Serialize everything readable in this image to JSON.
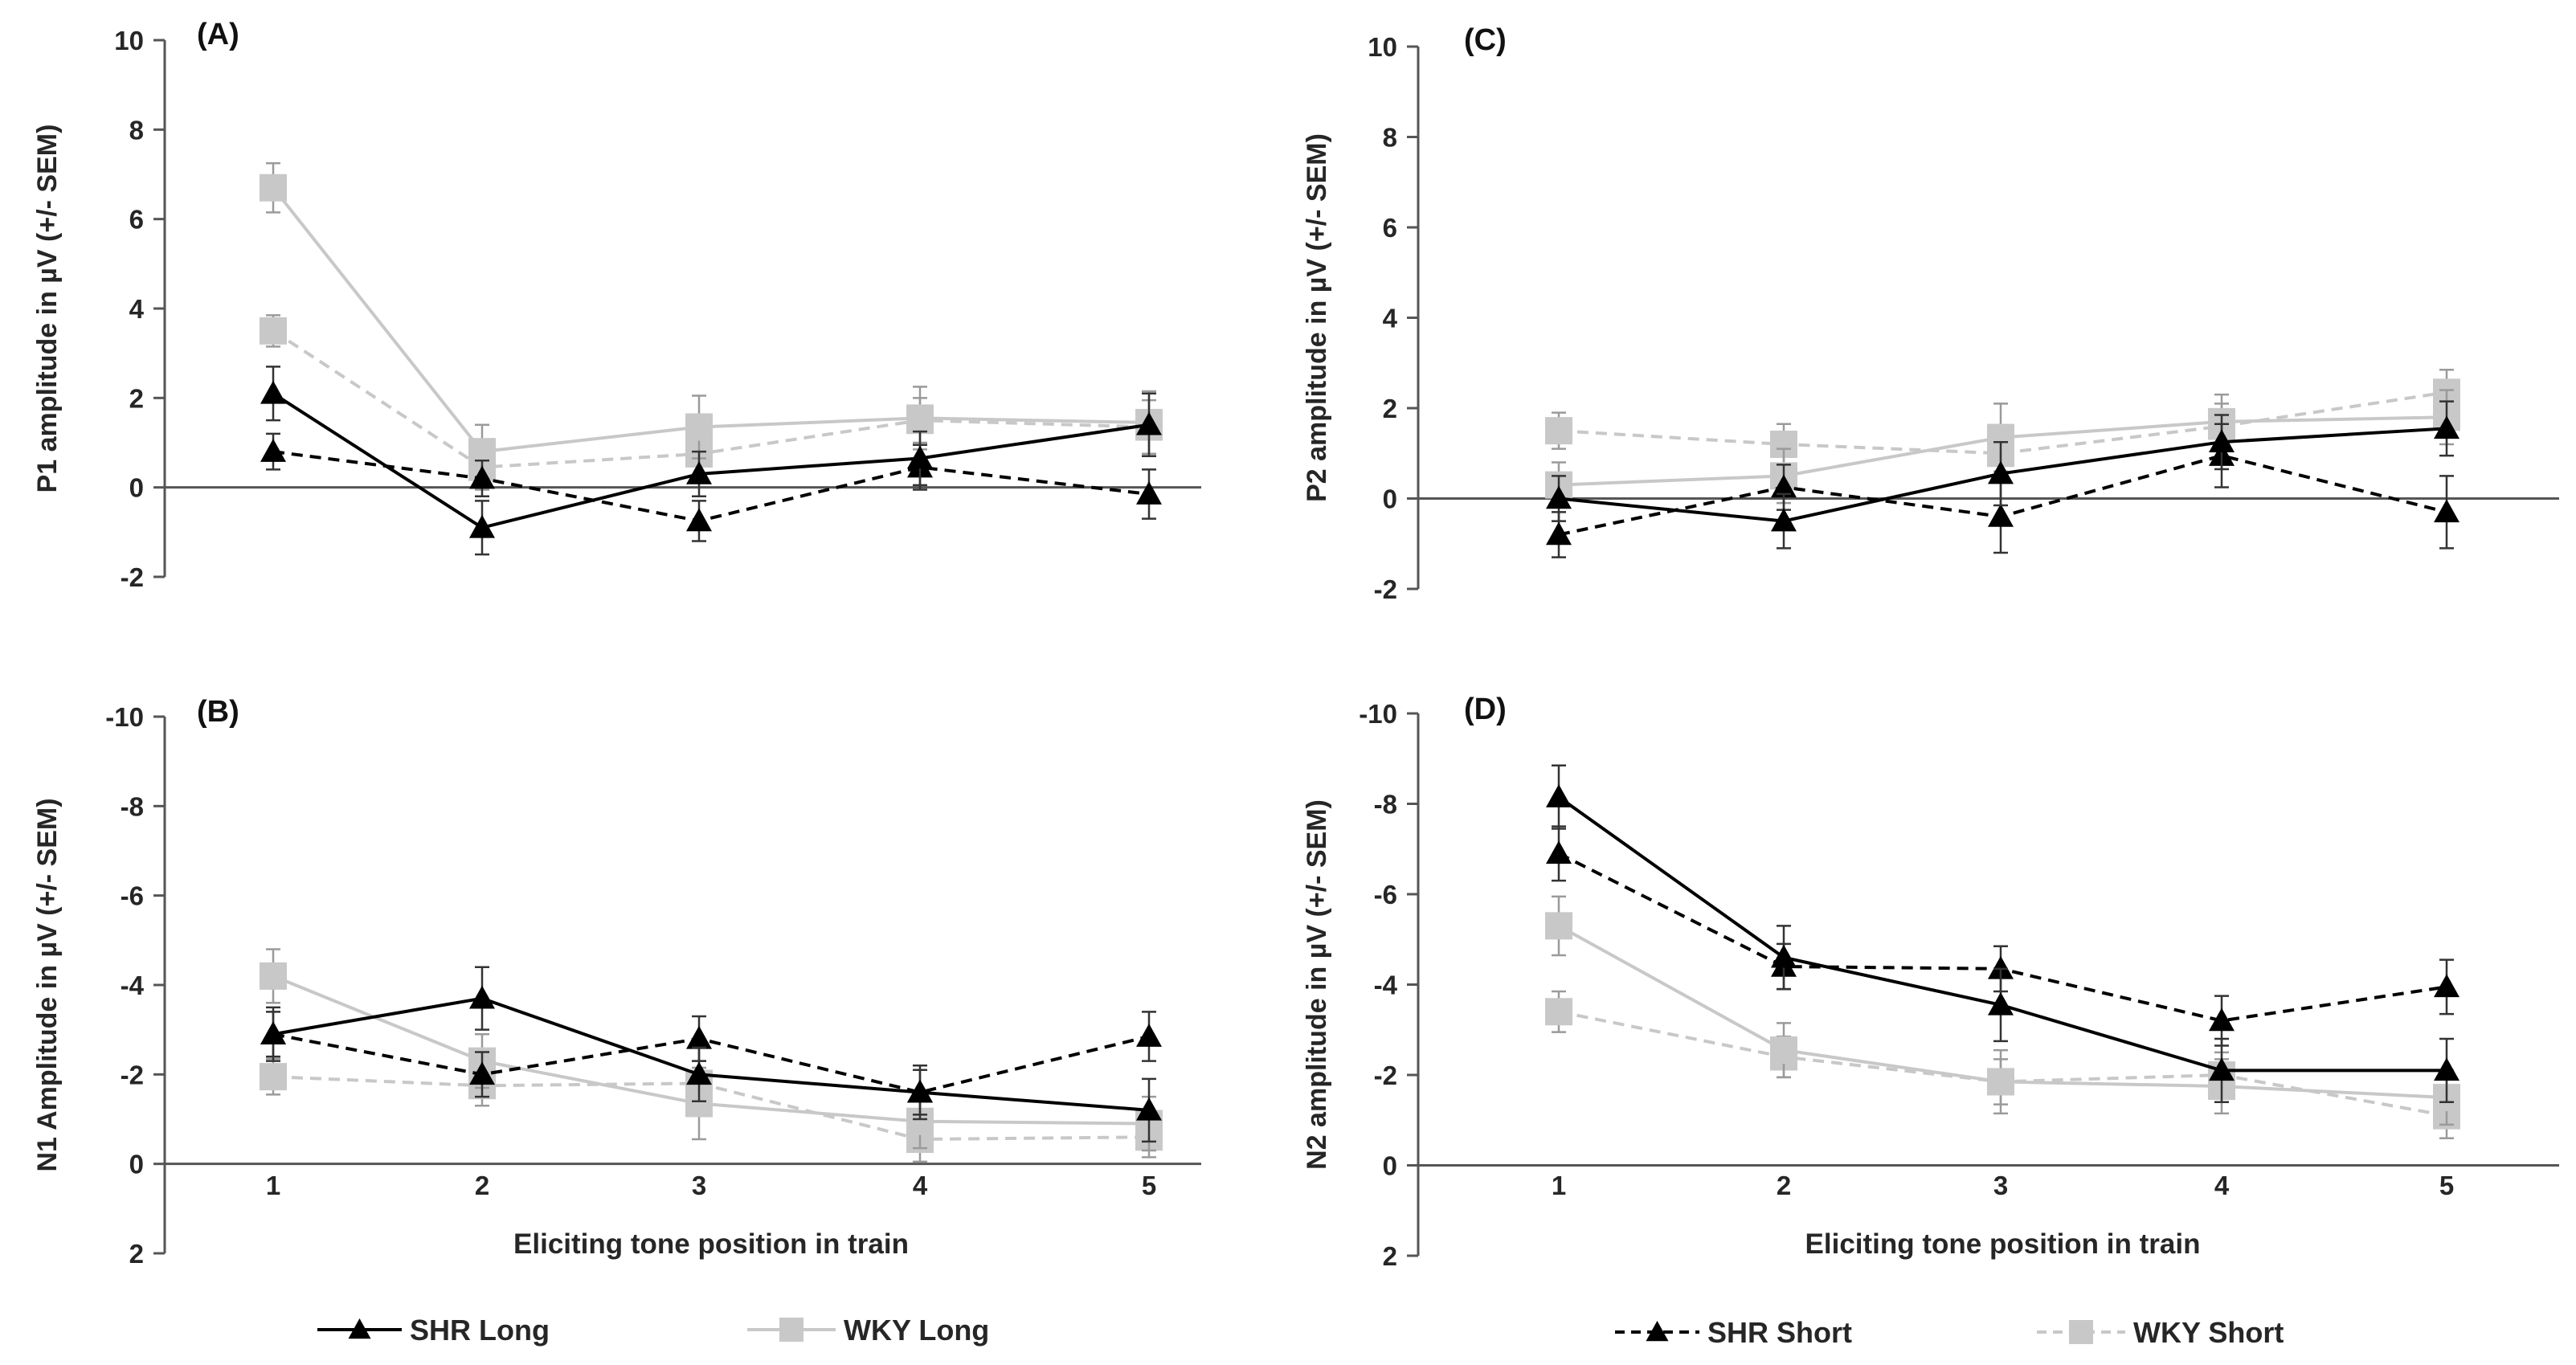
{
  "chart_data": [
    {
      "type": "line",
      "panel": "(A)",
      "ylabel": "P1 amplitude in µV (+/- SEM)",
      "xlabel": "",
      "ylim": [
        -2,
        10
      ],
      "yticks": [
        "-2",
        "0",
        "2",
        "4",
        "6",
        "8",
        "10"
      ],
      "inverted": false,
      "x": [
        1,
        2,
        3,
        4,
        5
      ],
      "xtick_labels": [],
      "series": [
        {
          "name": "SHR Long",
          "values": [
            2.1,
            -0.9,
            0.3,
            0.65,
            1.4
          ],
          "err": [
            0.6,
            0.6,
            0.5,
            0.6,
            0.7
          ]
        },
        {
          "name": "WKY Long",
          "values": [
            6.7,
            0.8,
            1.35,
            1.55,
            1.45
          ],
          "err": [
            0.55,
            0.6,
            0.7,
            0.7,
            0.7
          ]
        },
        {
          "name": "SHR Short",
          "values": [
            0.8,
            0.2,
            -0.75,
            0.45,
            -0.15
          ],
          "err": [
            0.4,
            0.4,
            0.45,
            0.5,
            0.55
          ]
        },
        {
          "name": "WKY Short",
          "values": [
            3.5,
            0.45,
            0.75,
            1.5,
            1.35
          ],
          "err": [
            0.35,
            0.5,
            0.5,
            0.5,
            0.6
          ]
        }
      ]
    },
    {
      "type": "line",
      "panel": "(B)",
      "ylabel": "N1  Amplitude in µV (+/- SEM)",
      "xlabel": "Eliciting tone position in train",
      "ylim": [
        2,
        -10
      ],
      "yticks": [
        "2",
        "0",
        "-2",
        "-4",
        "-6",
        "-8",
        "-10"
      ],
      "inverted": true,
      "x": [
        1,
        2,
        3,
        4,
        5
      ],
      "xtick_labels": [
        "1",
        "2",
        "3",
        "4",
        "5"
      ],
      "series": [
        {
          "name": "SHR Long",
          "values": [
            -2.9,
            -3.7,
            -2.0,
            -1.6,
            -1.2
          ],
          "err": [
            0.6,
            0.7,
            0.6,
            0.6,
            0.7
          ]
        },
        {
          "name": "WKY Long",
          "values": [
            -4.2,
            -2.3,
            -1.35,
            -0.95,
            -0.9
          ],
          "err": [
            0.6,
            0.6,
            0.8,
            0.6,
            0.6
          ]
        },
        {
          "name": "SHR Short",
          "values": [
            -2.9,
            -2.0,
            -2.8,
            -1.6,
            -2.85
          ],
          "err": [
            0.5,
            0.5,
            0.5,
            0.5,
            0.55
          ]
        },
        {
          "name": "WKY Short",
          "values": [
            -1.95,
            -1.75,
            -1.8,
            -0.55,
            -0.6
          ],
          "err": [
            0.4,
            0.45,
            0.5,
            0.5,
            0.45
          ]
        }
      ]
    },
    {
      "type": "line",
      "panel": "(C)",
      "ylabel": "P2 amplitude in µV (+/- SEM)",
      "xlabel": "",
      "ylim": [
        -2,
        10
      ],
      "yticks": [
        "-2",
        "0",
        "2",
        "4",
        "6",
        "8",
        "10"
      ],
      "inverted": false,
      "x": [
        1,
        2,
        3,
        4,
        5
      ],
      "xtick_labels": [],
      "series": [
        {
          "name": "SHR Long",
          "values": [
            0.0,
            -0.5,
            0.55,
            1.25,
            1.55
          ],
          "err": [
            0.5,
            0.6,
            0.7,
            0.6,
            0.6
          ]
        },
        {
          "name": "WKY Long",
          "values": [
            0.3,
            0.5,
            1.35,
            1.7,
            1.8
          ],
          "err": [
            0.5,
            0.6,
            0.75,
            0.6,
            0.6
          ]
        },
        {
          "name": "SHR Short",
          "values": [
            -0.8,
            0.25,
            -0.4,
            0.95,
            -0.3
          ],
          "err": [
            0.5,
            0.5,
            0.8,
            0.7,
            0.8
          ]
        },
        {
          "name": "WKY Short",
          "values": [
            1.5,
            1.2,
            1.0,
            1.6,
            2.35
          ],
          "err": [
            0.4,
            0.45,
            0.5,
            0.5,
            0.5
          ]
        }
      ]
    },
    {
      "type": "line",
      "panel": "(D)",
      "ylabel": "N2 amplitude in µV (+/- SEM)",
      "xlabel": "Eliciting tone position in train",
      "ylim": [
        2,
        -10
      ],
      "yticks": [
        "2",
        "0",
        "-2",
        "-4",
        "-6",
        "-8",
        "-10"
      ],
      "inverted": true,
      "x": [
        1,
        2,
        3,
        4,
        5
      ],
      "xtick_labels": [
        "1",
        "2",
        "3",
        "4",
        "5"
      ],
      "series": [
        {
          "name": "SHR Long",
          "values": [
            -8.15,
            -4.6,
            -3.55,
            -2.1,
            -2.1
          ],
          "err": [
            0.7,
            0.7,
            0.8,
            0.7,
            0.7
          ]
        },
        {
          "name": "WKY Long",
          "values": [
            -5.3,
            -2.55,
            -1.85,
            -1.75,
            -1.5
          ],
          "err": [
            0.65,
            0.6,
            0.7,
            0.6,
            0.6
          ]
        },
        {
          "name": "SHR Short",
          "values": [
            -6.9,
            -4.4,
            -4.35,
            -3.2,
            -3.95
          ],
          "err": [
            0.6,
            0.5,
            0.5,
            0.55,
            0.6
          ]
        },
        {
          "name": "WKY Short",
          "values": [
            -3.4,
            -2.4,
            -1.85,
            -2.0,
            -1.1
          ],
          "err": [
            0.45,
            0.45,
            0.5,
            0.5,
            0.5
          ]
        }
      ]
    }
  ],
  "legend": [
    {
      "name": "SHR Long",
      "color": "#000000",
      "dashed": false,
      "marker": "triangle"
    },
    {
      "name": "WKY Long",
      "color": "#c8c8c8",
      "dashed": false,
      "marker": "square"
    },
    {
      "name": "SHR Short",
      "color": "#000000",
      "dashed": true,
      "marker": "triangle"
    },
    {
      "name": "WKY Short",
      "color": "#c8c8c8",
      "dashed": true,
      "marker": "square"
    }
  ]
}
